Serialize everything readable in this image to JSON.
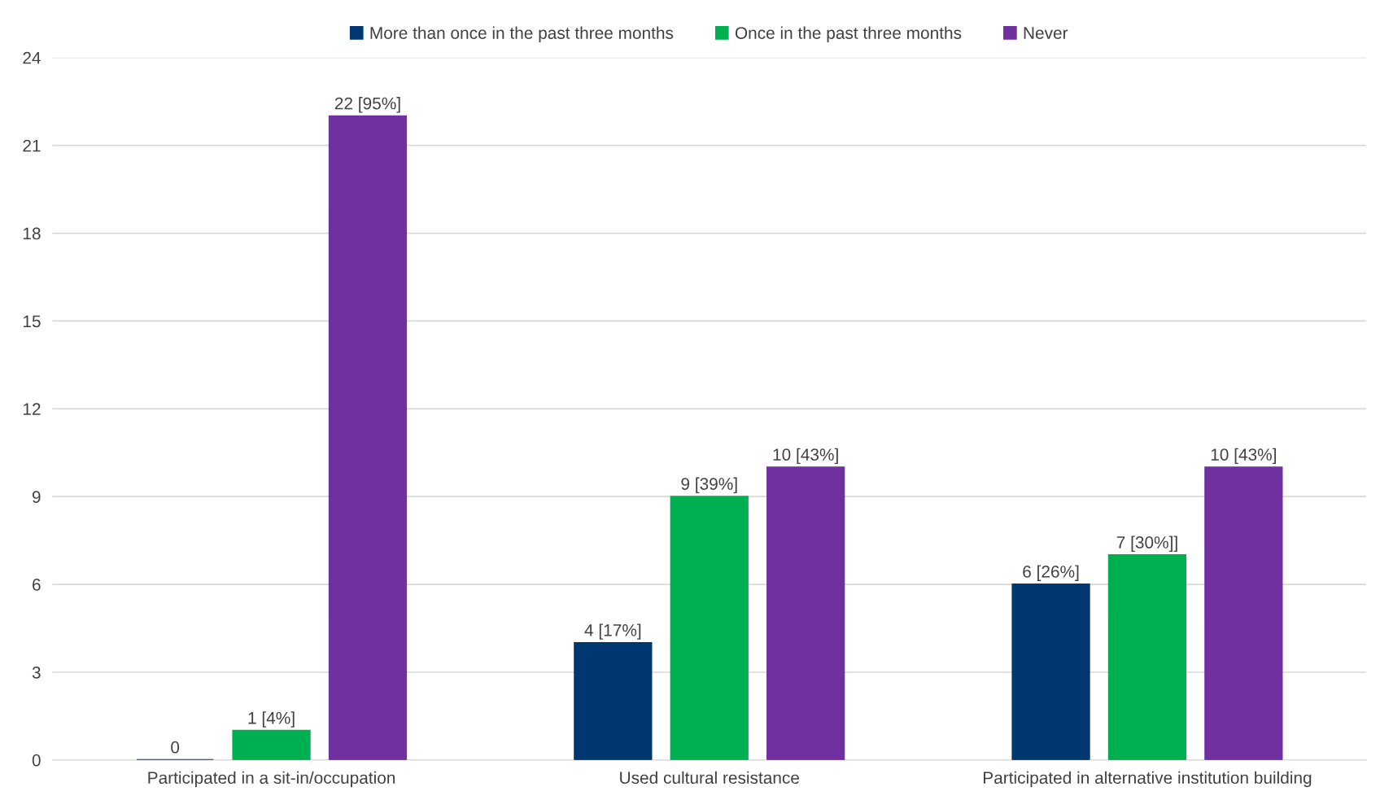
{
  "chart_data": {
    "type": "bar",
    "categories": [
      "Participated in a sit-in/occupation",
      "Used cultural resistance",
      "Participated in alternative institution building"
    ],
    "series": [
      {
        "name": "More than once in the past three months",
        "color": "#003770",
        "values": [
          0,
          4,
          6
        ],
        "value_labels": [
          "0",
          "4 [17%]",
          "6 [26%]"
        ]
      },
      {
        "name": "Once in the past three months",
        "color": "#00b050",
        "values": [
          1,
          9,
          7
        ],
        "value_labels": [
          "1 [4%]",
          "9 [39%]",
          "7 [30%]]"
        ]
      },
      {
        "name": "Never",
        "color": "#7030a0",
        "values": [
          22,
          10,
          10
        ],
        "value_labels": [
          "22 [95%]",
          "10 [43%]",
          "10 [43%]"
        ]
      }
    ],
    "ylim": [
      0,
      24
    ],
    "yticks": [
      0,
      3,
      6,
      9,
      12,
      15,
      18,
      21,
      24
    ],
    "grid": "y",
    "legend": "top"
  }
}
